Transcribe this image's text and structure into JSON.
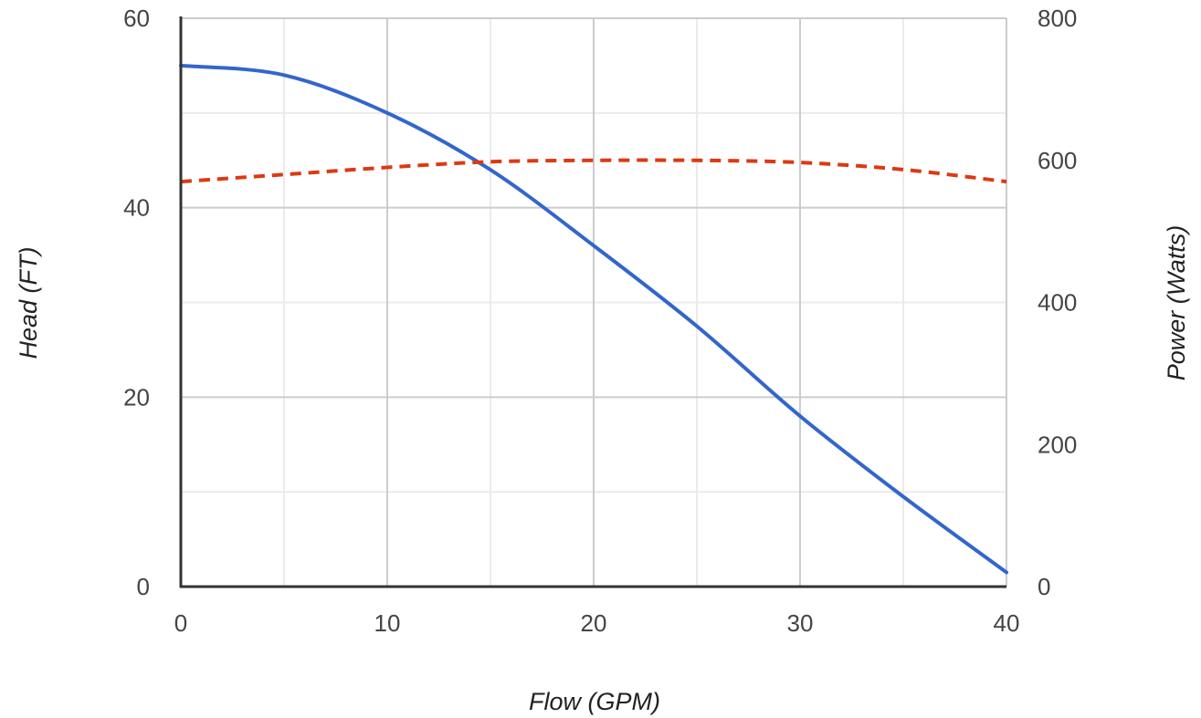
{
  "chart_data": {
    "type": "line",
    "xlabel": "Flow (GPM)",
    "ylabel_left": "Head (FT)",
    "ylabel_right": "Power (Watts)",
    "xlim": [
      0,
      40
    ],
    "ylim_left": [
      0,
      60
    ],
    "ylim_right": [
      0,
      800
    ],
    "x_ticks": [
      "0",
      "10",
      "20",
      "30",
      "40"
    ],
    "y_ticks_left": [
      "0",
      "20",
      "40",
      "60"
    ],
    "y_ticks_right": [
      "0",
      "200",
      "400",
      "600",
      "800"
    ],
    "grid": true,
    "series": [
      {
        "axis": "left",
        "color": "#3366cc",
        "style": "solid",
        "x": [
          0,
          5,
          10,
          15,
          20,
          25,
          30,
          35,
          40
        ],
        "values": [
          55,
          54,
          50,
          44,
          36,
          27.5,
          18,
          9.5,
          1.5
        ]
      },
      {
        "axis": "right",
        "color": "#dc3912",
        "style": "dashed",
        "x": [
          0,
          5,
          10,
          15,
          20,
          25,
          30,
          35,
          40
        ],
        "values": [
          570,
          580,
          590,
          598,
          600,
          600,
          597,
          587,
          570
        ]
      }
    ]
  }
}
